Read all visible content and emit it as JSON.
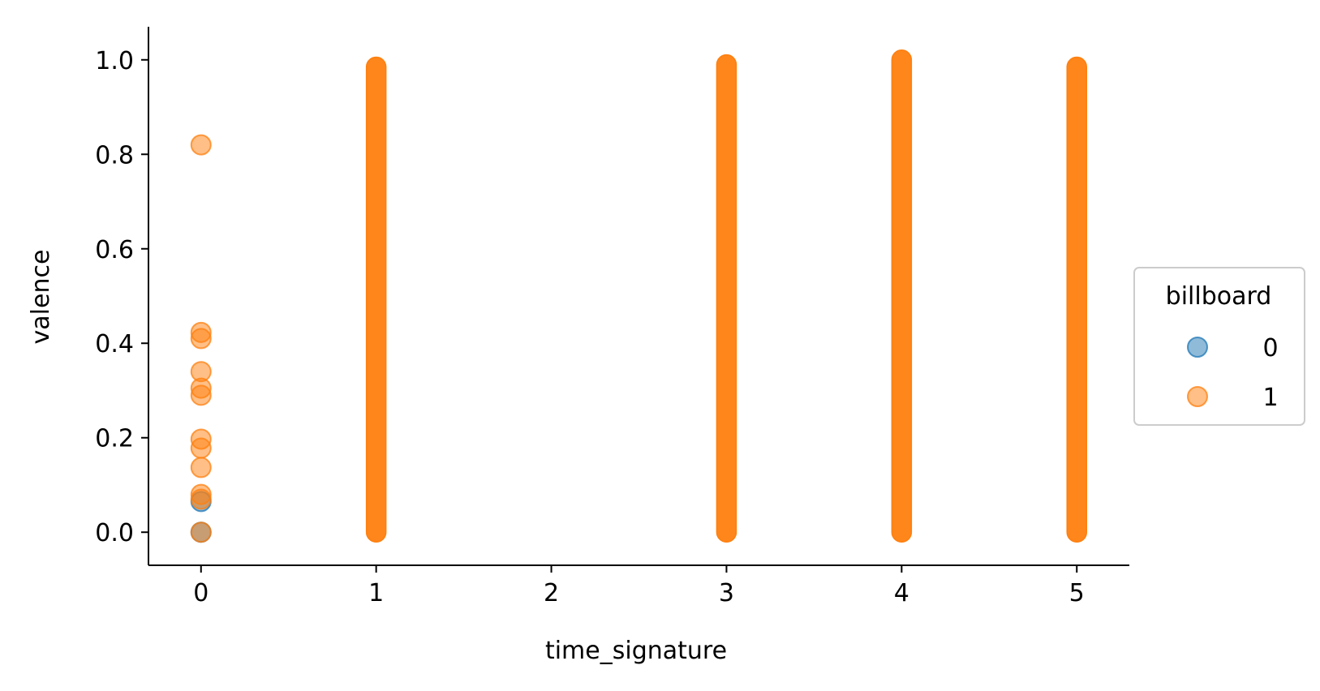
{
  "chart_data": {
    "type": "scatter",
    "title": "",
    "xlabel": "time_signature",
    "ylabel": "valence",
    "xlim": [
      -0.3,
      5.3
    ],
    "ylim": [
      -0.07,
      1.07
    ],
    "x_ticks": [
      0,
      1,
      2,
      3,
      4,
      5
    ],
    "y_ticks": [
      0.0,
      0.2,
      0.4,
      0.6,
      0.8,
      1.0
    ],
    "x_tick_labels": [
      "0",
      "1",
      "2",
      "3",
      "4",
      "5"
    ],
    "y_tick_labels": [
      "0.0",
      "0.2",
      "0.4",
      "0.6",
      "0.8",
      "1.0"
    ],
    "grid": false,
    "legend": {
      "title": "billboard",
      "placement": "center-right outside",
      "entries": [
        {
          "label": "0",
          "color": "#1f77b4"
        },
        {
          "label": "1",
          "color": "#ff7f0e"
        }
      ]
    },
    "series": [
      {
        "name": "0",
        "color": "#1f77b4",
        "points": [
          {
            "x": 0,
            "y": 0.0
          },
          {
            "x": 0,
            "y": 0.065
          }
        ]
      },
      {
        "name": "1",
        "color": "#ff7f0e",
        "points": [
          {
            "x": 0,
            "y": 0.0
          },
          {
            "x": 0,
            "y": 0.07
          },
          {
            "x": 0,
            "y": 0.08
          },
          {
            "x": 0,
            "y": 0.137
          },
          {
            "x": 0,
            "y": 0.178
          },
          {
            "x": 0,
            "y": 0.197
          },
          {
            "x": 0,
            "y": 0.29
          },
          {
            "x": 0,
            "y": 0.305
          },
          {
            "x": 0,
            "y": 0.34
          },
          {
            "x": 0,
            "y": 0.41
          },
          {
            "x": 0,
            "y": 0.423
          },
          {
            "x": 0,
            "y": 0.82
          }
        ],
        "dense_ranges": [
          {
            "x": 1,
            "y_min": 0.0,
            "y_max": 0.985
          },
          {
            "x": 3,
            "y_min": 0.0,
            "y_max": 0.99
          },
          {
            "x": 4,
            "y_min": 0.0,
            "y_max": 1.0
          },
          {
            "x": 5,
            "y_min": 0.0,
            "y_max": 0.985
          }
        ]
      }
    ]
  }
}
